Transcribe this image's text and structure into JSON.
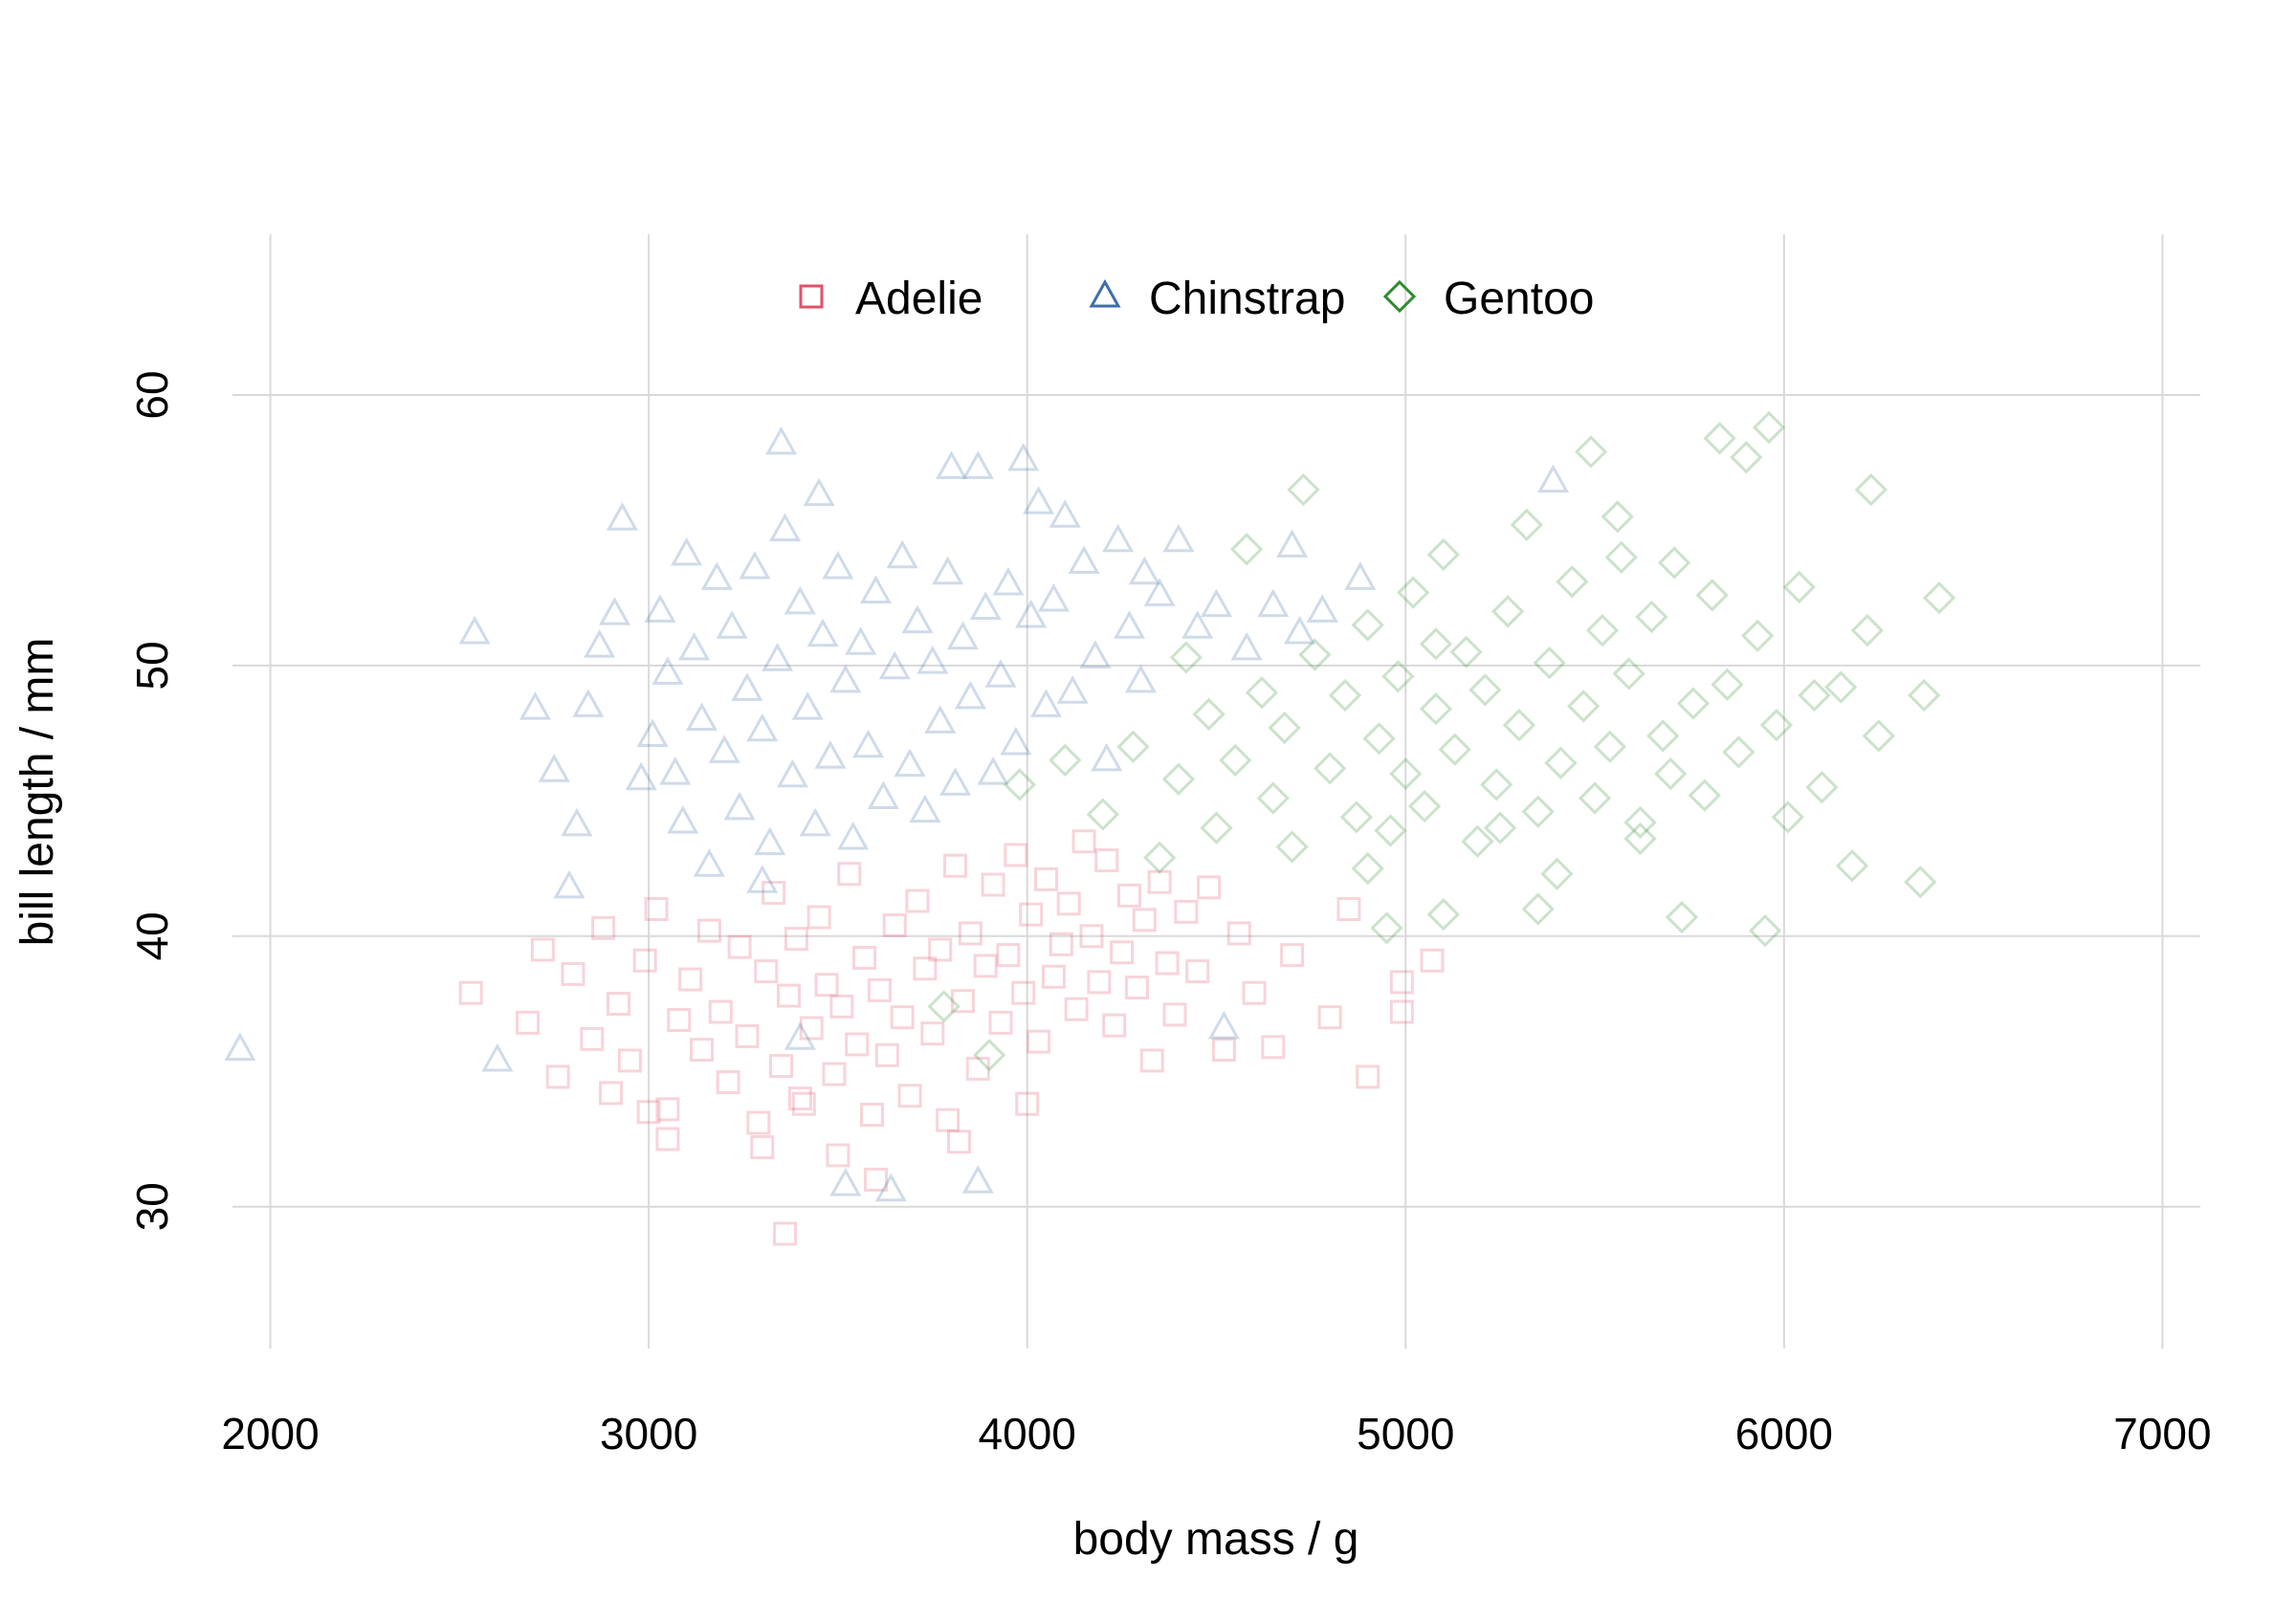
{
  "chart_data": {
    "type": "scatter",
    "title": "",
    "xlabel": "body mass / g",
    "ylabel": "bill length / mm",
    "xlim": [
      1900,
      7100
    ],
    "ylim": [
      26.5,
      65
    ],
    "xticks": [
      2000,
      3000,
      4000,
      5000,
      6000,
      7000
    ],
    "yticks": [
      30,
      40,
      50,
      60
    ],
    "grid": true,
    "legend_position": "top-center",
    "point_opacity": 0.25,
    "series": [
      {
        "name": "Adelie",
        "marker": "square",
        "color": "#E0526B",
        "points": [
          [
            2530,
            37.9
          ],
          [
            2680,
            36.8
          ],
          [
            2720,
            39.5
          ],
          [
            2760,
            34.8
          ],
          [
            2800,
            38.6
          ],
          [
            2850,
            36.2
          ],
          [
            2880,
            40.3
          ],
          [
            2920,
            37.5
          ],
          [
            2950,
            35.4
          ],
          [
            2990,
            39.1
          ],
          [
            3020,
            41.0
          ],
          [
            3050,
            33.6
          ],
          [
            3050,
            32.5
          ],
          [
            3080,
            36.9
          ],
          [
            3110,
            38.4
          ],
          [
            3140,
            35.8
          ],
          [
            3160,
            40.2
          ],
          [
            3190,
            37.2
          ],
          [
            3210,
            34.6
          ],
          [
            3240,
            39.6
          ],
          [
            3260,
            36.3
          ],
          [
            3290,
            33.1
          ],
          [
            3310,
            38.7
          ],
          [
            3330,
            41.6
          ],
          [
            3350,
            35.2
          ],
          [
            3360,
            29.0
          ],
          [
            3370,
            37.8
          ],
          [
            3390,
            39.9
          ],
          [
            3410,
            33.8
          ],
          [
            3430,
            36.6
          ],
          [
            3450,
            40.7
          ],
          [
            3470,
            38.2
          ],
          [
            3490,
            34.9
          ],
          [
            3500,
            31.9
          ],
          [
            3510,
            37.4
          ],
          [
            3530,
            42.3
          ],
          [
            3550,
            36.0
          ],
          [
            3570,
            39.2
          ],
          [
            3590,
            33.4
          ],
          [
            3610,
            38.0
          ],
          [
            3630,
            35.6
          ],
          [
            3650,
            40.4
          ],
          [
            3670,
            37.0
          ],
          [
            3690,
            34.1
          ],
          [
            3710,
            41.3
          ],
          [
            3730,
            38.8
          ],
          [
            3750,
            36.4
          ],
          [
            3770,
            39.5
          ],
          [
            3790,
            33.2
          ],
          [
            3810,
            42.6
          ],
          [
            3830,
            37.6
          ],
          [
            3850,
            40.1
          ],
          [
            3870,
            35.1
          ],
          [
            3890,
            38.9
          ],
          [
            3910,
            41.9
          ],
          [
            3930,
            36.8
          ],
          [
            3950,
            39.3
          ],
          [
            3970,
            43.0
          ],
          [
            3990,
            37.9
          ],
          [
            4010,
            40.8
          ],
          [
            4030,
            36.1
          ],
          [
            4050,
            42.1
          ],
          [
            4070,
            38.5
          ],
          [
            4090,
            39.7
          ],
          [
            4110,
            41.2
          ],
          [
            4130,
            37.3
          ],
          [
            4150,
            43.5
          ],
          [
            4170,
            40.0
          ],
          [
            4190,
            38.3
          ],
          [
            4210,
            42.8
          ],
          [
            4230,
            36.7
          ],
          [
            4250,
            39.4
          ],
          [
            4270,
            41.5
          ],
          [
            4290,
            38.1
          ],
          [
            4310,
            40.6
          ],
          [
            4330,
            35.4
          ],
          [
            4350,
            42.0
          ],
          [
            4370,
            39.0
          ],
          [
            4390,
            37.1
          ],
          [
            4420,
            40.9
          ],
          [
            4450,
            38.7
          ],
          [
            4480,
            41.8
          ],
          [
            4520,
            35.8
          ],
          [
            4560,
            40.1
          ],
          [
            4600,
            37.9
          ],
          [
            4650,
            35.9
          ],
          [
            4700,
            39.3
          ],
          [
            4800,
            37.0
          ],
          [
            4850,
            41.0
          ],
          [
            4900,
            34.8
          ],
          [
            4990,
            38.3
          ],
          [
            4990,
            37.2
          ],
          [
            5070,
            39.1
          ],
          [
            3400,
            34.0
          ],
          [
            3300,
            32.2
          ],
          [
            3600,
            31.0
          ],
          [
            3820,
            32.4
          ],
          [
            4000,
            33.8
          ],
          [
            2900,
            34.2
          ],
          [
            3000,
            33.5
          ]
        ]
      },
      {
        "name": "Chinstrap",
        "marker": "triangle",
        "color": "#3F6FA8",
        "points": [
          [
            1920,
            35.8
          ],
          [
            2540,
            51.2
          ],
          [
            2600,
            35.4
          ],
          [
            2700,
            48.4
          ],
          [
            2750,
            46.1
          ],
          [
            2790,
            41.8
          ],
          [
            2810,
            44.1
          ],
          [
            2840,
            48.5
          ],
          [
            2870,
            50.7
          ],
          [
            2910,
            51.9
          ],
          [
            2930,
            55.4
          ],
          [
            2980,
            45.8
          ],
          [
            3010,
            47.4
          ],
          [
            3030,
            52.0
          ],
          [
            3050,
            49.7
          ],
          [
            3070,
            46.0
          ],
          [
            3090,
            44.2
          ],
          [
            3100,
            54.1
          ],
          [
            3120,
            50.6
          ],
          [
            3140,
            48.0
          ],
          [
            3160,
            42.6
          ],
          [
            3180,
            53.2
          ],
          [
            3200,
            46.8
          ],
          [
            3220,
            51.4
          ],
          [
            3240,
            44.7
          ],
          [
            3260,
            49.1
          ],
          [
            3280,
            53.6
          ],
          [
            3300,
            47.6
          ],
          [
            3320,
            43.4
          ],
          [
            3340,
            50.2
          ],
          [
            3350,
            58.2
          ],
          [
            3360,
            55.0
          ],
          [
            3380,
            45.9
          ],
          [
            3400,
            52.3
          ],
          [
            3420,
            48.4
          ],
          [
            3440,
            44.1
          ],
          [
            3460,
            51.1
          ],
          [
            3480,
            46.6
          ],
          [
            3500,
            53.6
          ],
          [
            3520,
            49.4
          ],
          [
            3540,
            43.6
          ],
          [
            3560,
            50.8
          ],
          [
            3580,
            47.0
          ],
          [
            3600,
            52.7
          ],
          [
            3620,
            45.1
          ],
          [
            3640,
            30.6
          ],
          [
            3650,
            49.9
          ],
          [
            3670,
            54.0
          ],
          [
            3690,
            46.3
          ],
          [
            3710,
            51.6
          ],
          [
            3730,
            44.6
          ],
          [
            3750,
            50.1
          ],
          [
            3770,
            47.9
          ],
          [
            3790,
            53.4
          ],
          [
            3800,
            57.3
          ],
          [
            3810,
            45.6
          ],
          [
            3830,
            51.0
          ],
          [
            3850,
            48.8
          ],
          [
            3870,
            57.3
          ],
          [
            3890,
            52.1
          ],
          [
            3910,
            46.0
          ],
          [
            3930,
            49.6
          ],
          [
            3950,
            53.0
          ],
          [
            3970,
            47.1
          ],
          [
            3990,
            57.6
          ],
          [
            4010,
            51.8
          ],
          [
            4030,
            56.0
          ],
          [
            4050,
            48.5
          ],
          [
            4070,
            52.4
          ],
          [
            4100,
            55.5
          ],
          [
            4120,
            49.0
          ],
          [
            4150,
            53.8
          ],
          [
            4180,
            50.3
          ],
          [
            4210,
            46.5
          ],
          [
            4240,
            54.6
          ],
          [
            4270,
            51.4
          ],
          [
            4300,
            49.4
          ],
          [
            4310,
            53.4
          ],
          [
            4350,
            52.6
          ],
          [
            4400,
            54.6
          ],
          [
            4450,
            51.4
          ],
          [
            4500,
            52.2
          ],
          [
            4520,
            36.6
          ],
          [
            4580,
            50.6
          ],
          [
            4650,
            52.2
          ],
          [
            4700,
            54.4
          ],
          [
            4720,
            51.2
          ],
          [
            4780,
            52.0
          ],
          [
            4880,
            53.2
          ],
          [
            3400,
            36.2
          ],
          [
            3520,
            30.8
          ],
          [
            3870,
            30.9
          ],
          [
            3300,
            42.0
          ],
          [
            3450,
            56.3
          ],
          [
            5390,
            56.8
          ]
        ]
      },
      {
        "name": "Gentoo",
        "marker": "diamond",
        "color": "#2E8B2E",
        "points": [
          [
            3780,
            37.4
          ],
          [
            3900,
            35.6
          ],
          [
            3980,
            45.6
          ],
          [
            4100,
            46.5
          ],
          [
            4200,
            44.5
          ],
          [
            4280,
            47.0
          ],
          [
            4350,
            42.9
          ],
          [
            4400,
            45.8
          ],
          [
            4420,
            50.3
          ],
          [
            4480,
            48.2
          ],
          [
            4500,
            44.0
          ],
          [
            4550,
            46.5
          ],
          [
            4580,
            54.3
          ],
          [
            4620,
            49.0
          ],
          [
            4650,
            45.1
          ],
          [
            4680,
            47.7
          ],
          [
            4700,
            43.3
          ],
          [
            4730,
            56.5
          ],
          [
            4760,
            50.4
          ],
          [
            4800,
            46.2
          ],
          [
            4840,
            48.9
          ],
          [
            4870,
            44.4
          ],
          [
            4900,
            51.5
          ],
          [
            4930,
            47.3
          ],
          [
            4950,
            40.3
          ],
          [
            4960,
            43.9
          ],
          [
            4980,
            49.6
          ],
          [
            5000,
            46.0
          ],
          [
            5020,
            52.7
          ],
          [
            5050,
            44.8
          ],
          [
            5080,
            48.4
          ],
          [
            5100,
            54.1
          ],
          [
            5130,
            46.9
          ],
          [
            5160,
            50.5
          ],
          [
            5190,
            43.5
          ],
          [
            5210,
            49.1
          ],
          [
            5240,
            45.6
          ],
          [
            5270,
            52.0
          ],
          [
            5300,
            47.8
          ],
          [
            5320,
            55.2
          ],
          [
            5350,
            44.6
          ],
          [
            5380,
            50.1
          ],
          [
            5410,
            46.4
          ],
          [
            5440,
            53.1
          ],
          [
            5470,
            48.5
          ],
          [
            5490,
            57.9
          ],
          [
            5500,
            45.1
          ],
          [
            5520,
            51.3
          ],
          [
            5540,
            47.0
          ],
          [
            5570,
            54.0
          ],
          [
            5590,
            49.7
          ],
          [
            5620,
            44.2
          ],
          [
            5650,
            51.8
          ],
          [
            5680,
            47.4
          ],
          [
            5710,
            53.8
          ],
          [
            5730,
            40.7
          ],
          [
            5760,
            48.6
          ],
          [
            5790,
            45.2
          ],
          [
            5810,
            52.6
          ],
          [
            5830,
            58.4
          ],
          [
            5850,
            49.3
          ],
          [
            5880,
            46.8
          ],
          [
            5900,
            57.7
          ],
          [
            5930,
            51.1
          ],
          [
            5950,
            40.2
          ],
          [
            5960,
            58.8
          ],
          [
            5980,
            47.8
          ],
          [
            6010,
            44.4
          ],
          [
            6040,
            52.9
          ],
          [
            6080,
            48.9
          ],
          [
            6100,
            45.5
          ],
          [
            6150,
            49.2
          ],
          [
            6180,
            42.6
          ],
          [
            6220,
            51.3
          ],
          [
            6230,
            56.5
          ],
          [
            6250,
            47.4
          ],
          [
            6360,
            42.0
          ],
          [
            6370,
            48.9
          ],
          [
            6410,
            52.5
          ],
          [
            5100,
            40.8
          ],
          [
            5400,
            42.3
          ],
          [
            5620,
            43.6
          ],
          [
            5250,
            44.0
          ],
          [
            4900,
            42.5
          ],
          [
            5080,
            50.8
          ],
          [
            5560,
            55.5
          ],
          [
            5350,
            41.0
          ],
          [
            5700,
            46.0
          ]
        ]
      }
    ]
  }
}
